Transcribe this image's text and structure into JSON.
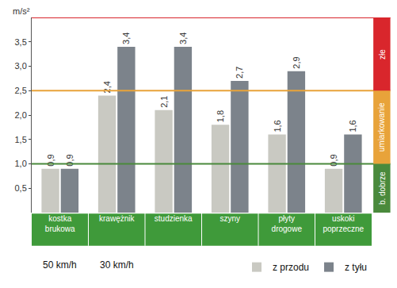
{
  "chart_data": {
    "type": "bar",
    "y_label": "m/s²",
    "categories": [
      "kostka brukowa",
      "krawężnik",
      "studzienka",
      "szyny",
      "płyty drogowe",
      "uskoki poprzeczne"
    ],
    "series": [
      {
        "name": "z przodu",
        "color": "#c9c9c2",
        "values": [
          0.9,
          2.4,
          2.1,
          1.8,
          1.6,
          0.9
        ],
        "value_labels": [
          "0,9",
          "2,4",
          "2,1",
          "1,8",
          "1,6",
          "0,9"
        ]
      },
      {
        "name": "z tyłu",
        "color": "#7c838b",
        "values": [
          0.9,
          3.4,
          3.4,
          2.7,
          2.9,
          1.6
        ],
        "value_labels": [
          "0,9",
          "3,4",
          "3,4",
          "2,7",
          "2,9",
          "1,6"
        ]
      }
    ],
    "ylim": [
      0,
      4
    ],
    "yticks": [
      {
        "value": 0.5,
        "label": "0,5"
      },
      {
        "value": 1.0,
        "label": "1,0"
      },
      {
        "value": 1.5,
        "label": "1,5"
      },
      {
        "value": 2.0,
        "label": "2,0"
      },
      {
        "value": 2.5,
        "label": "2,5"
      },
      {
        "value": 3.0,
        "label": "3,0"
      },
      {
        "value": 3.5,
        "label": "3,5"
      }
    ],
    "grid": false,
    "data_labels": true,
    "legend": "bottom right",
    "bands": [
      {
        "label": "b. dobrze",
        "from": 0,
        "to": 1,
        "color": "#4a8a3c"
      },
      {
        "label": "umiarkowanie",
        "from": 1,
        "to": 2.5,
        "color": "#e8a33a"
      },
      {
        "label": "złe",
        "from": 2.5,
        "to": 4,
        "color": "#d9262c"
      }
    ],
    "annotations": [
      {
        "text": "50 km/h",
        "category": "kostka brukowa"
      },
      {
        "text": "30 km/h",
        "category": "krawężnik"
      }
    ]
  }
}
